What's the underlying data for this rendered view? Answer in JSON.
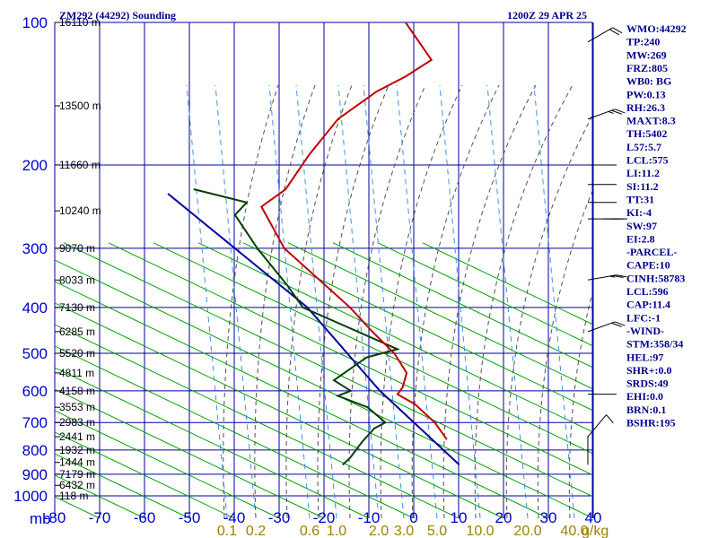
{
  "title_left": "ZM292 (44292) Sounding",
  "title_right": "1200Z 29 APR 25",
  "colors": {
    "grid": "#0000a0",
    "dry_adiabat": "#00a000",
    "moist_adiabat": "#505050",
    "mixing_ratio": "#4090e0",
    "temperature": "#c00000",
    "dewpoint": "#004000",
    "parcel": "#0000a0",
    "index_text": "#00008b"
  },
  "chart_data": {
    "type": "skew-t",
    "title": "ZM292 (44292) Sounding",
    "subtitle": "1200Z 29 APR 25",
    "x_axis_unit": "mb",
    "mixing_ratio_unit": "g/kg",
    "pressure_levels": [
      100,
      200,
      300,
      400,
      500,
      600,
      700,
      800,
      900,
      1000
    ],
    "pressure_labels": [
      "100",
      "200",
      "300",
      "400",
      "500",
      "600",
      "700",
      "800",
      "900",
      "1000"
    ],
    "temperature_ticks": [
      -80,
      -70,
      -60,
      -50,
      -40,
      -30,
      -20,
      -10,
      0,
      10,
      20,
      30,
      40
    ],
    "temperature_labels": [
      "-80",
      "-70",
      "-60",
      "-50",
      "-40",
      "-30",
      "-20",
      "-10",
      "0",
      "10",
      "20",
      "30",
      "40"
    ],
    "mixing_ratio_labels": [
      "0.1",
      "0.2",
      "0.6",
      "1.0",
      "2.0",
      "3.0",
      "5.0",
      "10.0",
      "20.0",
      "40.0"
    ],
    "mixing_ratio_values": [
      0.1,
      0.2,
      0.6,
      1.0,
      2.0,
      3.0,
      5.0,
      10.0,
      20.0,
      40.0
    ],
    "height_labels": [
      {
        "p": 100,
        "label": "16110 m"
      },
      {
        "p": 150,
        "label": "13500 m"
      },
      {
        "p": 200,
        "label": "11660 m"
      },
      {
        "p": 250,
        "label": "10240 m"
      },
      {
        "p": 300,
        "label": "9070 m"
      },
      {
        "p": 350,
        "label": "8033 m"
      },
      {
        "p": 400,
        "label": "7130 m"
      },
      {
        "p": 450,
        "label": "6285 m"
      },
      {
        "p": 500,
        "label": "5520 m"
      },
      {
        "p": 550,
        "label": "4811 m"
      },
      {
        "p": 600,
        "label": "4158 m"
      },
      {
        "p": 650,
        "label": "3553 m"
      },
      {
        "p": 700,
        "label": "2983 m"
      },
      {
        "p": 750,
        "label": "2441 m"
      },
      {
        "p": 800,
        "label": "1932 m"
      },
      {
        "p": 850,
        "label": "1444 m"
      },
      {
        "p": 900,
        "label": "7179 m"
      },
      {
        "p": 950,
        "label": "6432 m"
      },
      {
        "p": 1000,
        "label": "118 m"
      }
    ],
    "temperature_profile": [
      {
        "p": 100,
        "t": -80.5
      },
      {
        "p": 120,
        "t": -68.5
      },
      {
        "p": 130,
        "t": -71.5
      },
      {
        "p": 140,
        "t": -75.5
      },
      {
        "p": 160,
        "t": -79.5
      },
      {
        "p": 190,
        "t": -80.0
      },
      {
        "p": 225,
        "t": -79.5
      },
      {
        "p": 245,
        "t": -82.0
      },
      {
        "p": 300,
        "t": -70.0
      },
      {
        "p": 400,
        "t": -45.5
      },
      {
        "p": 450,
        "t": -36.5
      },
      {
        "p": 500,
        "t": -28.0
      },
      {
        "p": 550,
        "t": -22.0
      },
      {
        "p": 590,
        "t": -20.5
      },
      {
        "p": 610,
        "t": -20.5
      },
      {
        "p": 640,
        "t": -15.0
      },
      {
        "p": 700,
        "t": -7.5
      },
      {
        "p": 760,
        "t": -2.0
      }
    ],
    "dewpoint_profile": [
      {
        "p": 225,
        "t": -100.0
      },
      {
        "p": 240,
        "t": -86.0
      },
      {
        "p": 255,
        "t": -86.5
      },
      {
        "p": 300,
        "t": -76.0
      },
      {
        "p": 360,
        "t": -63.0
      },
      {
        "p": 400,
        "t": -56.0
      },
      {
        "p": 490,
        "t": -28.0
      },
      {
        "p": 510,
        "t": -33.5
      },
      {
        "p": 570,
        "t": -37.0
      },
      {
        "p": 600,
        "t": -31.5
      },
      {
        "p": 615,
        "t": -33.5
      },
      {
        "p": 650,
        "t": -25.0
      },
      {
        "p": 700,
        "t": -18.5
      },
      {
        "p": 720,
        "t": -20.0
      },
      {
        "p": 770,
        "t": -20.5
      },
      {
        "p": 830,
        "t": -20.5
      },
      {
        "p": 860,
        "t": -21.0
      }
    ],
    "parcel_profile": [
      {
        "p": 230,
        "t": -105.0
      },
      {
        "p": 400,
        "t": -55.0
      },
      {
        "p": 600,
        "t": -25.0
      },
      {
        "p": 860,
        "t": 5.0
      }
    ],
    "wind_barbs": [
      {
        "p": 110,
        "dir": 300,
        "kt": 20
      },
      {
        "p": 160,
        "dir": 290,
        "kt": 25
      },
      {
        "p": 200,
        "dir": 270,
        "kt": 50
      },
      {
        "p": 220,
        "dir": 270,
        "kt": 50
      },
      {
        "p": 240,
        "dir": 270,
        "kt": 50
      },
      {
        "p": 260,
        "dir": 270,
        "kt": 45
      },
      {
        "p": 350,
        "dir": 280,
        "kt": 25
      },
      {
        "p": 450,
        "dir": 290,
        "kt": 20
      },
      {
        "p": 610,
        "dir": 270,
        "kt": 50
      },
      {
        "p": 750,
        "dir": 320,
        "kt": 10
      },
      {
        "p": 860,
        "dir": 0,
        "kt": 5
      }
    ]
  },
  "indices": [
    "WMO:44292",
    "TP:240",
    "MW:269",
    "FRZ:805",
    "WB0: BG",
    "PW:0.13",
    "RH:26.3",
    "MAXT:8.3",
    "TH:5402",
    "L57:5.7",
    "LCL:575",
    "LI:11.2",
    "SI:11.2",
    "TT:31",
    "KI:-4",
    "SW:97",
    "EI:2.8",
    "-PARCEL-",
    "CAPE:10",
    "CINH:58783",
    "LCL:596",
    "CAP:11.4",
    "LFC:-1",
    "-WIND-",
    "STM:358/34",
    "HEL:97",
    "SHR+:0.0",
    "SRDS:49",
    "EHI:0.0",
    "BRN:0.1",
    "BSHR:195"
  ]
}
